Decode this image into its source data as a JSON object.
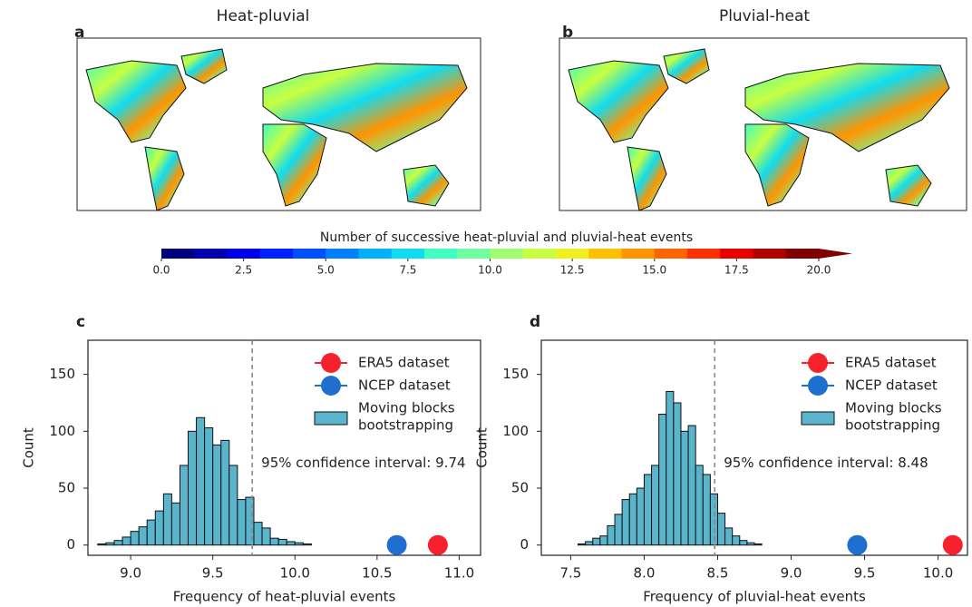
{
  "maps": [
    {
      "label": "a",
      "title": "Heat-pluvial"
    },
    {
      "label": "b",
      "title": "Pluvial-heat"
    }
  ],
  "chart_data": [
    {
      "type": "colorbar",
      "title": "Number of successive heat-pluvial and pluvial-heat events",
      "xlim": [
        0,
        20
      ],
      "xticks": [
        {
          "value": 0,
          "label": "0.0"
        },
        2.5,
        {
          "value": 5,
          "label": "5.0"
        },
        7.5,
        {
          "value": 10,
          "label": "10.0"
        },
        12.5,
        {
          "value": 15,
          "label": "15.0"
        },
        17.5,
        {
          "value": 20,
          "label": "20.0"
        }
      ],
      "colors": [
        "#00007f",
        "#0000b0",
        "#0000e8",
        "#0022ff",
        "#0050ff",
        "#0080ff",
        "#00b0ff",
        "#10dcf0",
        "#40ffc0",
        "#70ffa0",
        "#a0ff70",
        "#c8ff40",
        "#f0f020",
        "#ffc000",
        "#ff9400",
        "#ff6400",
        "#ff3000",
        "#e80000",
        "#b00000",
        "#800000"
      ]
    },
    {
      "type": "histogram",
      "label": "c",
      "xlabel": "Frequency of heat-pluvial events",
      "ylabel": "Count",
      "bins": [
        8.8,
        8.85,
        8.9,
        8.95,
        9.0,
        9.05,
        9.1,
        9.15,
        9.2,
        9.25,
        9.3,
        9.35,
        9.4,
        9.45,
        9.5,
        9.55,
        9.6,
        9.65,
        9.7,
        9.75,
        9.8,
        9.85,
        9.9,
        9.95,
        10.0,
        10.05,
        10.1
      ],
      "counts": [
        1,
        2,
        4,
        7,
        12,
        16,
        22,
        30,
        45,
        37,
        70,
        100,
        112,
        103,
        88,
        92,
        70,
        40,
        42,
        20,
        15,
        6,
        5,
        3,
        2,
        1
      ],
      "color": "#5ab4cc",
      "hist_label": [
        "Moving blocks",
        "bootstrapping"
      ],
      "series": [
        {
          "name": "ERA5 dataset",
          "color": "#f5222d",
          "x": [
            10.87
          ],
          "values": [
            0
          ]
        },
        {
          "name": "NCEP dataset",
          "color": "#1f6fd1",
          "x": [
            10.62
          ],
          "values": [
            0
          ]
        }
      ],
      "vline": 9.74,
      "annotation": "95% confidence interval: 9.74",
      "xlim": [
        8.74,
        11.13
      ],
      "ylim": [
        -9,
        180
      ],
      "xticks": [
        {
          "value": 9,
          "label": "9.0"
        },
        9.5,
        {
          "value": 10,
          "label": "10.0"
        },
        10.5,
        {
          "value": 11,
          "label": "11.0"
        }
      ],
      "yticks": [
        0,
        50,
        100,
        150
      ]
    },
    {
      "type": "histogram",
      "label": "d",
      "xlabel": "Frequency of pluvial-heat events",
      "ylabel": "Count",
      "bins": [
        7.55,
        7.6,
        7.65,
        7.7,
        7.75,
        7.8,
        7.85,
        7.9,
        7.95,
        8.0,
        8.05,
        8.1,
        8.15,
        8.2,
        8.25,
        8.3,
        8.35,
        8.4,
        8.45,
        8.5,
        8.55,
        8.6,
        8.65,
        8.7,
        8.75,
        8.8
      ],
      "counts": [
        1,
        3,
        6,
        8,
        17,
        27,
        40,
        45,
        50,
        62,
        70,
        115,
        135,
        125,
        100,
        105,
        70,
        62,
        45,
        28,
        15,
        8,
        4,
        2,
        1
      ],
      "color": "#5ab4cc",
      "hist_label": [
        "Moving blocks",
        "bootstrapping"
      ],
      "series": [
        {
          "name": "ERA5 dataset",
          "color": "#f5222d",
          "x": [
            10.1
          ],
          "values": [
            0
          ]
        },
        {
          "name": "NCEP dataset",
          "color": "#1f6fd1",
          "x": [
            9.45
          ],
          "values": [
            0
          ]
        }
      ],
      "vline": 8.48,
      "annotation": "95% confidence interval: 8.48",
      "xlim": [
        7.3,
        10.2
      ],
      "ylim": [
        -9,
        180
      ],
      "xticks": [
        7.5,
        {
          "value": 8,
          "label": "8.0"
        },
        8.5,
        {
          "value": 9,
          "label": "9.0"
        },
        9.5,
        {
          "value": 10,
          "label": "10.0"
        }
      ],
      "yticks": [
        0,
        50,
        100,
        150
      ]
    }
  ]
}
